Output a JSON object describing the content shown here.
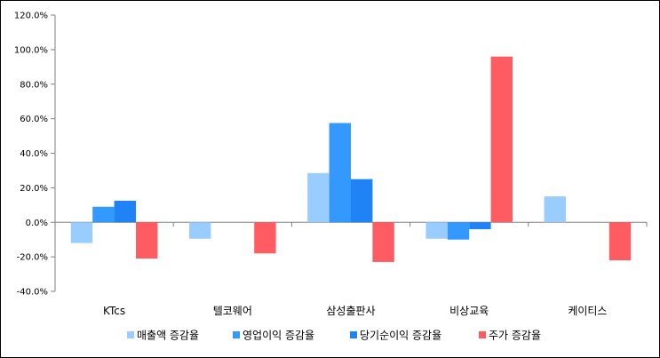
{
  "chart_data": {
    "type": "bar",
    "categories": [
      "KTcs",
      "텔코웨어",
      "삼성출판사",
      "비상교육",
      "케이티스"
    ],
    "series": [
      {
        "name": "매출액 증감율",
        "color": "#99CCFF",
        "values": [
          -12,
          -9.5,
          28.5,
          -9.5,
          15
        ]
      },
      {
        "name": "영업이익 증감율",
        "color": "#3399FF",
        "values": [
          9,
          null,
          57.5,
          -10,
          null
        ]
      },
      {
        "name": "당기순이익 증감율",
        "color": "#1F83F5",
        "values": [
          12.5,
          null,
          25,
          -4,
          null
        ]
      },
      {
        "name": "주가 증감율",
        "color": "#FF5B63",
        "values": [
          -21,
          -18,
          -23,
          96,
          -22
        ]
      }
    ],
    "ylim": [
      -40,
      120
    ],
    "yticks": [
      -40,
      -20,
      0,
      20,
      40,
      60,
      80,
      100,
      120
    ],
    "ytick_labels": [
      "-40.0%",
      "-20.0%",
      "0.0%",
      "20.0%",
      "40.0%",
      "60.0%",
      "80.0%",
      "100.0%",
      "120.0%"
    ],
    "grid": false,
    "legend_position": "bottom"
  }
}
